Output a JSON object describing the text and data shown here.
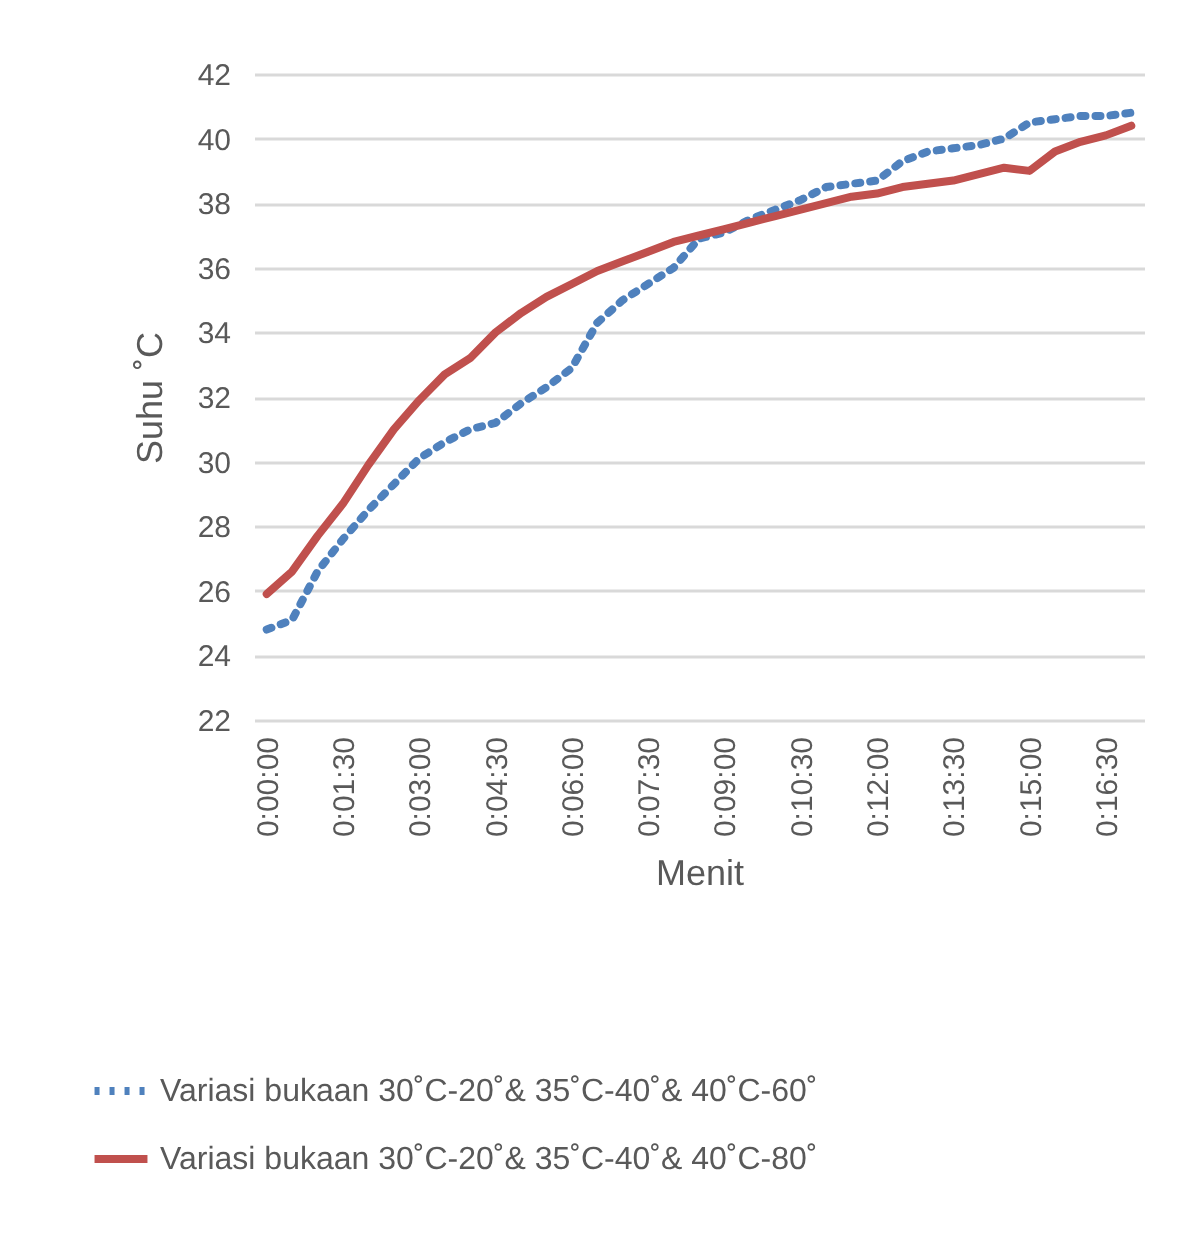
{
  "chart_data": {
    "type": "line",
    "xlabel": "Menit",
    "ylabel": "Suhu ˚C",
    "categories": [
      "0:00:00",
      null,
      null,
      "0:01:30",
      null,
      null,
      "0:03:00",
      null,
      null,
      "0:04:30",
      null,
      null,
      "0:06:00",
      null,
      null,
      "0:07:30",
      null,
      null,
      "0:09:00",
      null,
      null,
      "0:10:30",
      null,
      null,
      "0:12:00",
      null,
      null,
      "0:13:30",
      null,
      null,
      "0:15:00",
      null,
      null,
      "0:16:30",
      null
    ],
    "series": [
      {
        "name": "Variasi bukaan 30˚C-20˚& 35˚C-40˚& 40˚C-60˚",
        "color": "#4f81bd",
        "line_style": "dotted",
        "values": [
          24.8,
          25.1,
          26.6,
          27.6,
          28.5,
          29.3,
          30.1,
          30.6,
          31.0,
          31.2,
          31.8,
          32.3,
          32.9,
          34.3,
          35.0,
          35.5,
          36.0,
          36.9,
          37.1,
          37.5,
          37.8,
          38.1,
          38.5,
          38.6,
          38.7,
          39.3,
          39.6,
          39.7,
          39.8,
          40.0,
          40.5,
          40.6,
          40.7,
          40.7,
          40.8
        ]
      },
      {
        "name": "Variasi bukaan 30˚C-20˚& 35˚C-40˚& 40˚C-80˚",
        "color": "#c0504d",
        "line_style": "solid",
        "values": [
          25.9,
          26.6,
          27.7,
          28.7,
          29.9,
          31.0,
          31.9,
          32.7,
          33.2,
          34.0,
          34.6,
          35.1,
          35.5,
          35.9,
          36.2,
          36.5,
          36.8,
          37.0,
          37.2,
          37.4,
          37.6,
          37.8,
          38.0,
          38.2,
          38.3,
          38.5,
          38.6,
          38.7,
          38.9,
          39.1,
          39.0,
          39.6,
          39.9,
          40.1,
          40.4
        ]
      }
    ],
    "ylim": [
      22,
      42
    ],
    "yticks": [
      22,
      24,
      26,
      28,
      30,
      32,
      34,
      36,
      38,
      40,
      42
    ],
    "grid": "y",
    "legend": "bottom"
  }
}
